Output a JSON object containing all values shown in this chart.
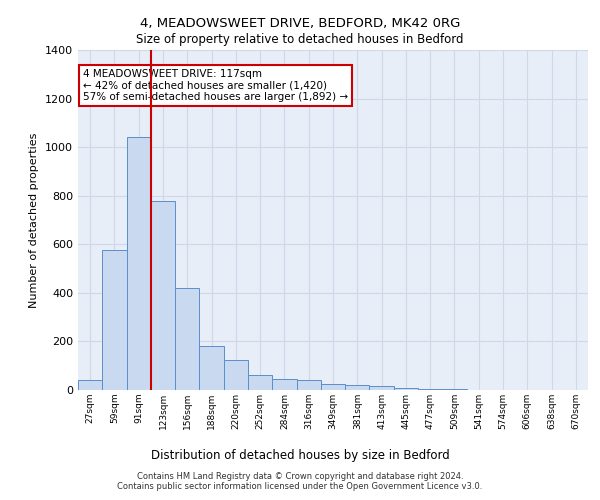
{
  "title1": "4, MEADOWSWEET DRIVE, BEDFORD, MK42 0RG",
  "title2": "Size of property relative to detached houses in Bedford",
  "xlabel": "Distribution of detached houses by size in Bedford",
  "ylabel": "Number of detached properties",
  "categories": [
    "27sqm",
    "59sqm",
    "91sqm",
    "123sqm",
    "156sqm",
    "188sqm",
    "220sqm",
    "252sqm",
    "284sqm",
    "316sqm",
    "349sqm",
    "381sqm",
    "413sqm",
    "445sqm",
    "477sqm",
    "509sqm",
    "541sqm",
    "574sqm",
    "606sqm",
    "638sqm",
    "670sqm"
  ],
  "values": [
    40,
    575,
    1040,
    780,
    420,
    180,
    125,
    60,
    45,
    40,
    25,
    20,
    15,
    10,
    5,
    3,
    2,
    1,
    0,
    0,
    0
  ],
  "bar_color": "#c9d9f0",
  "bar_edge_color": "#5b8fc9",
  "grid_color": "#d0d8e8",
  "background_color": "#e8eef8",
  "annotation_text": "4 MEADOWSWEET DRIVE: 117sqm\n← 42% of detached houses are smaller (1,420)\n57% of semi-detached houses are larger (1,892) →",
  "annotation_box_color": "#ffffff",
  "annotation_box_edge": "#cc0000",
  "vline_color": "#cc0000",
  "vline_x": 2.5,
  "ylim": [
    0,
    1400
  ],
  "footer1": "Contains HM Land Registry data © Crown copyright and database right 2024.",
  "footer2": "Contains public sector information licensed under the Open Government Licence v3.0."
}
